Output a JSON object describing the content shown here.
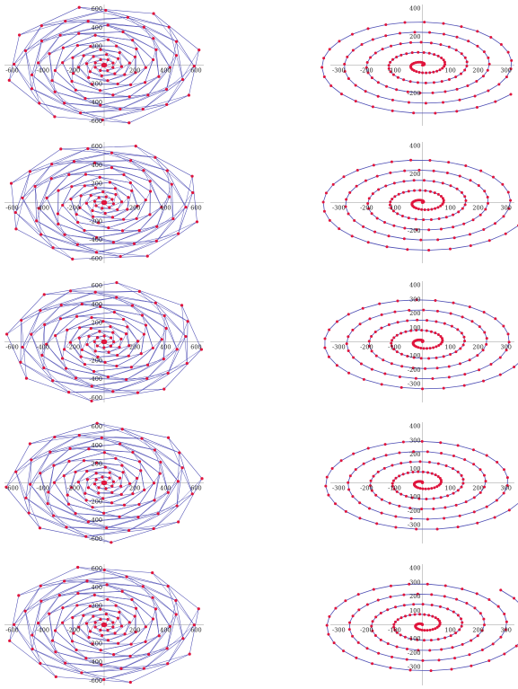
{
  "figure": {
    "colors": {
      "background": "#ffffff",
      "line": "#4b4bb3",
      "point": "#e0143c",
      "axis": "#9a9a9a",
      "tick_text": "#222222"
    }
  },
  "chart_data": [
    {
      "type": "line",
      "row": 1,
      "col": 1,
      "title": "",
      "xlabel": "",
      "ylabel": "",
      "xlim": [
        -650,
        650
      ],
      "ylim": [
        -650,
        650
      ],
      "grid": false,
      "legend": "none",
      "x_ticks": [
        "-600",
        "-400",
        "-200",
        "200",
        "400",
        "600"
      ],
      "y_ticks": [
        "600",
        "400",
        "200",
        "-200",
        "-400",
        "-600"
      ],
      "series": [
        {
          "model": "polygon-spiral",
          "arms": 8,
          "points_per_arm": 13,
          "r_min": 10,
          "r_max": 640,
          "twist": 1.05,
          "phase": 0.1
        }
      ]
    },
    {
      "type": "line",
      "row": 1,
      "col": 2,
      "title": "",
      "xlabel": "",
      "ylabel": "",
      "xlim": [
        -330,
        330
      ],
      "ylim": [
        -430,
        430
      ],
      "grid": false,
      "legend": "none",
      "x_ticks": [
        "-300",
        "-200",
        "-100",
        "100",
        "200",
        "300"
      ],
      "y_ticks": [
        "400",
        "200",
        "-200"
      ],
      "series": [
        {
          "model": "archimedean-spiral",
          "turns": 4.9,
          "b": 80,
          "y_scale": 0.62,
          "points": 150,
          "phase": 0.0
        }
      ]
    },
    {
      "type": "line",
      "row": 2,
      "col": 1,
      "title": "",
      "xlabel": "",
      "ylabel": "",
      "xlim": [
        -650,
        650
      ],
      "ylim": [
        -650,
        650
      ],
      "grid": false,
      "legend": "none",
      "x_ticks": [
        "-600",
        "-400",
        "-200",
        "200",
        "400",
        "600"
      ],
      "y_ticks": [
        "600",
        "400",
        "200",
        "-200",
        "-400",
        "-600"
      ],
      "series": [
        {
          "model": "polygon-spiral",
          "arms": 8,
          "points_per_arm": 13,
          "r_min": 10,
          "r_max": 640,
          "twist": 1.05,
          "phase": 0.3
        }
      ]
    },
    {
      "type": "line",
      "row": 2,
      "col": 2,
      "title": "",
      "xlabel": "",
      "ylabel": "",
      "xlim": [
        -330,
        330
      ],
      "ylim": [
        -430,
        430
      ],
      "grid": false,
      "legend": "none",
      "x_ticks": [
        "-300",
        "-200",
        "-100",
        "100",
        "200",
        "300"
      ],
      "y_ticks": [
        "400",
        "200",
        "-200"
      ],
      "series": [
        {
          "model": "archimedean-spiral",
          "turns": 4.9,
          "b": 80,
          "y_scale": 0.62,
          "points": 150,
          "phase": 0.35
        }
      ]
    },
    {
      "type": "line",
      "row": 3,
      "col": 1,
      "title": "",
      "xlabel": "",
      "ylabel": "",
      "xlim": [
        -650,
        650
      ],
      "ylim": [
        -650,
        650
      ],
      "grid": false,
      "legend": "none",
      "x_ticks": [
        "-600",
        "-400",
        "-200",
        "200",
        "400",
        "600"
      ],
      "y_ticks": [
        "600",
        "400",
        "200",
        "-200",
        "-400",
        "-600"
      ],
      "series": [
        {
          "model": "polygon-spiral",
          "arms": 8,
          "points_per_arm": 13,
          "r_min": 10,
          "r_max": 640,
          "twist": 1.05,
          "phase": 0.5
        }
      ]
    },
    {
      "type": "line",
      "row": 3,
      "col": 2,
      "title": "",
      "xlabel": "",
      "ylabel": "",
      "xlim": [
        -330,
        330
      ],
      "ylim": [
        -430,
        430
      ],
      "grid": false,
      "legend": "none",
      "x_ticks": [
        "-300",
        "-200",
        "-100",
        "100",
        "200",
        "300"
      ],
      "y_ticks": [
        "400",
        "300",
        "200",
        "100",
        "-100",
        "-200",
        "-300"
      ],
      "series": [
        {
          "model": "archimedean-spiral",
          "turns": 4.9,
          "b": 80,
          "y_scale": 0.62,
          "points": 150,
          "phase": 0.7
        }
      ]
    },
    {
      "type": "line",
      "row": 4,
      "col": 1,
      "title": "",
      "xlabel": "",
      "ylabel": "",
      "xlim": [
        -650,
        650
      ],
      "ylim": [
        -650,
        650
      ],
      "grid": false,
      "legend": "none",
      "x_ticks": [
        "-600",
        "-400",
        "-200",
        "200",
        "400",
        "600"
      ],
      "y_ticks": [
        "600",
        "400",
        "200",
        "-200",
        "-400",
        "-600"
      ],
      "series": [
        {
          "model": "polygon-spiral",
          "arms": 8,
          "points_per_arm": 13,
          "r_min": 10,
          "r_max": 640,
          "twist": 1.05,
          "phase": 0.7
        }
      ]
    },
    {
      "type": "line",
      "row": 4,
      "col": 2,
      "title": "",
      "xlabel": "",
      "ylabel": "",
      "xlim": [
        -330,
        330
      ],
      "ylim": [
        -430,
        430
      ],
      "grid": false,
      "legend": "none",
      "x_ticks": [
        "-300",
        "-200",
        "-100",
        "100",
        "200",
        "300"
      ],
      "y_ticks": [
        "400",
        "300",
        "200",
        "100",
        "-100",
        "-200",
        "-300"
      ],
      "series": [
        {
          "model": "archimedean-spiral",
          "turns": 4.9,
          "b": 80,
          "y_scale": 0.62,
          "points": 150,
          "phase": 1.05
        }
      ]
    },
    {
      "type": "line",
      "row": 5,
      "col": 1,
      "title": "",
      "xlabel": "",
      "ylabel": "",
      "xlim": [
        -650,
        650
      ],
      "ylim": [
        -650,
        650
      ],
      "grid": false,
      "legend": "none",
      "x_ticks": [
        "-600",
        "-400",
        "-200",
        "200",
        "400",
        "600"
      ],
      "y_ticks": [
        "600",
        "400",
        "200",
        "-200",
        "-400",
        "-600"
      ],
      "series": [
        {
          "model": "polygon-spiral",
          "arms": 8,
          "points_per_arm": 13,
          "r_min": 10,
          "r_max": 640,
          "twist": 1.05,
          "phase": 0.9
        }
      ]
    },
    {
      "type": "line",
      "row": 5,
      "col": 2,
      "title": "",
      "xlabel": "",
      "ylabel": "",
      "xlim": [
        -330,
        330
      ],
      "ylim": [
        -430,
        430
      ],
      "grid": false,
      "legend": "none",
      "x_ticks": [
        "-300",
        "-200",
        "-100",
        "100",
        "200",
        "300"
      ],
      "y_ticks": [
        "400",
        "300",
        "200",
        "100",
        "-100",
        "-200",
        "-300"
      ],
      "series": [
        {
          "model": "archimedean-spiral",
          "turns": 4.9,
          "b": 80,
          "y_scale": 0.62,
          "points": 150,
          "phase": 1.4
        }
      ]
    }
  ]
}
